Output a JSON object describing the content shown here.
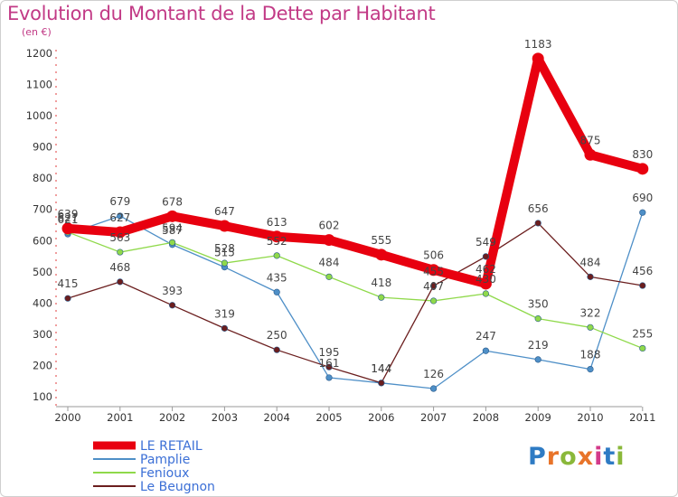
{
  "header": {
    "title": "Evolution du Montant de la Dette par Habitant",
    "subtitle": "(en €)"
  },
  "logo": {
    "letters": [
      "P",
      "r",
      "o",
      "x",
      "i",
      "t",
      "i"
    ],
    "colors": [
      "#2e7bc4",
      "#e8742a",
      "#8ab83a",
      "#e8742a",
      "#d33a8a",
      "#2e7bc4",
      "#8ab83a"
    ]
  },
  "chart_data": {
    "type": "line",
    "x": [
      "2000",
      "2001",
      "2002",
      "2003",
      "2004",
      "2005",
      "2006",
      "2007",
      "2008",
      "2009",
      "2010",
      "2011"
    ],
    "ylim": [
      100,
      1200
    ],
    "yticks": [
      100,
      200,
      300,
      400,
      500,
      600,
      700,
      800,
      900,
      1000,
      1100,
      1200
    ],
    "grid": false,
    "legend": "bottom-left",
    "series": [
      {
        "name": "LE RETAIL",
        "color": "#e8000f",
        "emphasis": true,
        "values": [
          639,
          627,
          678,
          647,
          613,
          602,
          555,
          506,
          462,
          1183,
          875,
          830
        ]
      },
      {
        "name": "Pamplie",
        "color": "#4e8fc7",
        "emphasis": false,
        "values": [
          621,
          679,
          587,
          515,
          435,
          161,
          144,
          126,
          247,
          219,
          188,
          690
        ]
      },
      {
        "name": "Fenioux",
        "color": "#8fd94a",
        "emphasis": false,
        "values": [
          627,
          563,
          594,
          528,
          552,
          484,
          418,
          407,
          430,
          350,
          322,
          255
        ]
      },
      {
        "name": "Le Beugnon",
        "color": "#6b1e1e",
        "emphasis": false,
        "values": [
          415,
          468,
          393,
          319,
          250,
          195,
          144,
          455,
          549,
          656,
          484,
          456
        ]
      }
    ]
  }
}
